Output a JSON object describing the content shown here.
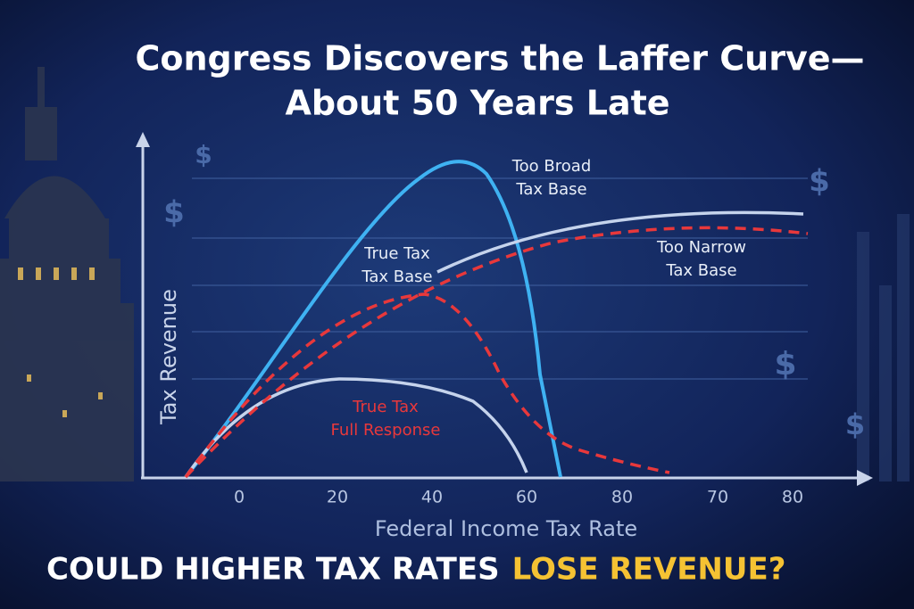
{
  "title": {
    "lines": [
      "Congress Discovers the Laffer Curve—",
      "About 50 Years Late"
    ]
  },
  "axes": {
    "y_label": "Tax Revenue",
    "x_label": "Federal Income Tax Rate",
    "x_tick_labels": [
      "0",
      "20",
      "40",
      "60",
      "80",
      "70",
      "80"
    ]
  },
  "curve_labels": [
    {
      "lines": [
        "Too Broad",
        "Tax Base"
      ]
    },
    {
      "lines": [
        "True Tax",
        "Tax Base"
      ]
    },
    {
      "lines": [
        "Too Narrow",
        "Tax Base"
      ]
    },
    {
      "lines": [
        "True Tax",
        "Full Response"
      ]
    }
  ],
  "icons": [
    "$",
    "$",
    "$",
    "$",
    "$"
  ],
  "banner": {
    "white": "COULD HIGHER TAX RATES",
    "highlight": "LOSE REVENUE?"
  }
}
